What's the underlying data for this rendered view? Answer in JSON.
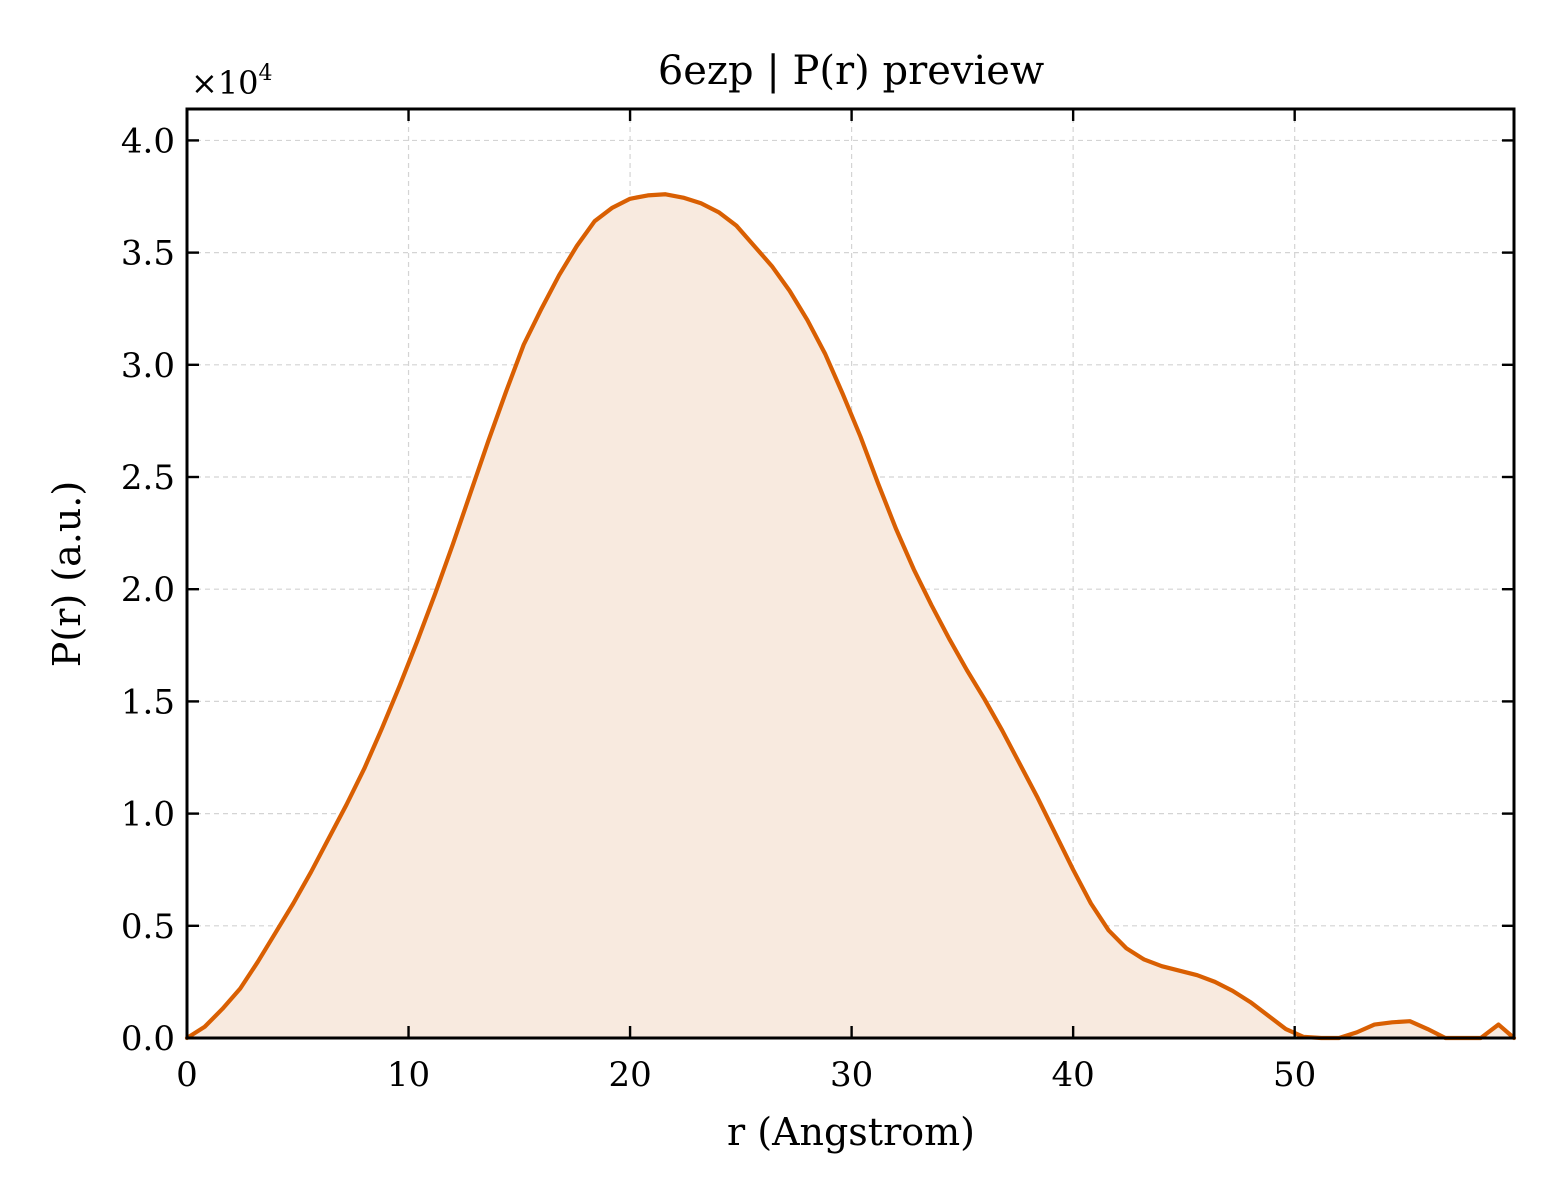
{
  "chart_data": {
    "type": "area",
    "title": "6ezp | P(r) preview",
    "xlabel": "r (Angstrom)",
    "ylabel": "P(r) (a.u.)",
    "y_offset_label": "×10",
    "y_offset_exponent": "4",
    "y_scale": 10000,
    "xlim": [
      0,
      59.9
    ],
    "ylim": [
      0,
      41400
    ],
    "x_ticks": [
      0,
      10,
      20,
      30,
      40,
      50
    ],
    "x_tick_labels": [
      "0",
      "10",
      "20",
      "30",
      "40",
      "50"
    ],
    "y_ticks": [
      0,
      5000,
      10000,
      15000,
      20000,
      25000,
      30000,
      35000,
      40000
    ],
    "y_tick_labels": [
      "0.0",
      "0.5",
      "1.0",
      "1.5",
      "2.0",
      "2.5",
      "3.0",
      "3.5",
      "4.0"
    ],
    "grid": true,
    "line_color": "#d95f02",
    "fill_color": "#f8eadf",
    "series": [
      {
        "x": [
          0,
          0.8,
          1.6,
          2.4,
          3.2,
          4.0,
          4.8,
          5.6,
          6.4,
          7.2,
          8.0,
          8.8,
          9.6,
          10.4,
          11.2,
          12.0,
          12.8,
          13.6,
          14.4,
          15.2,
          16.0,
          16.8,
          17.6,
          18.4,
          19.2,
          20.0,
          20.8,
          21.6,
          22.4,
          23.2,
          24.0,
          24.8,
          25.6,
          26.4,
          27.2,
          28.0,
          28.8,
          29.6,
          30.4,
          31.2,
          32.0,
          32.8,
          33.6,
          34.4,
          35.2,
          36.0,
          36.8,
          37.6,
          38.4,
          39.2,
          40.0,
          40.8,
          41.6,
          42.4,
          43.2,
          44.0,
          44.8,
          45.6,
          46.4,
          47.2,
          48.0,
          48.8,
          49.6,
          50.4,
          51.2,
          52.0,
          52.8,
          53.6,
          54.4,
          55.2,
          56.0,
          56.8,
          57.6,
          58.4,
          59.2,
          59.9
        ],
        "y": [
          0,
          500,
          1300,
          2200,
          3400,
          4700,
          6000,
          7400,
          8900,
          10400,
          12000,
          13800,
          15700,
          17700,
          19800,
          22000,
          24300,
          26600,
          28800,
          30900,
          32500,
          34000,
          35300,
          36400,
          37000,
          37400,
          37550,
          37600,
          37450,
          37200,
          36800,
          36200,
          35300,
          34400,
          33300,
          32000,
          30500,
          28700,
          26800,
          24700,
          22700,
          20900,
          19300,
          17800,
          16400,
          15100,
          13700,
          12200,
          10700,
          9100,
          7500,
          6000,
          4800,
          4000,
          3500,
          3200,
          3000,
          2800,
          2500,
          2100,
          1600,
          1000,
          400,
          50,
          0,
          0,
          250,
          600,
          700,
          750,
          400,
          0,
          0,
          0,
          600,
          0
        ]
      }
    ]
  }
}
